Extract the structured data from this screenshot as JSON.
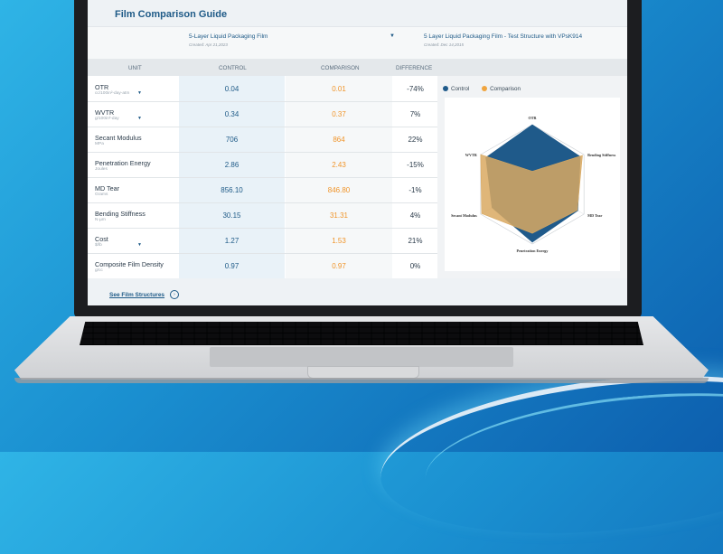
{
  "app": {
    "title": "Film Comparison Guide"
  },
  "selectors": {
    "control": {
      "name": "5-Layer Liquid Packaging Film",
      "date": "Created: Apr 21,2023"
    },
    "comparison": {
      "name": "5 Layer Liquid Packaging Film - Test Structure with VPsK914",
      "date": "Created: Dec 14,2015"
    }
  },
  "table": {
    "headers": {
      "unit": "UNIT",
      "control": "CONTROL",
      "comparison": "COMPARISON",
      "difference": "DIFFERENCE"
    },
    "rows": [
      {
        "name": "OTR",
        "unit": "cc/100in²-day-atm",
        "control": "0.04",
        "comparison": "0.01",
        "difference": "-74%",
        "dropdown": true
      },
      {
        "name": "WVTR",
        "unit": "g/100in²-day",
        "control": "0.34",
        "comparison": "0.37",
        "difference": "7%",
        "dropdown": true
      },
      {
        "name": "Secant Modulus",
        "unit": "MPa",
        "control": "706",
        "comparison": "864",
        "difference": "22%",
        "dropdown": false
      },
      {
        "name": "Penetration Energy",
        "unit": "Joules",
        "control": "2.86",
        "comparison": "2.43",
        "difference": "-15%",
        "dropdown": false
      },
      {
        "name": "MD Tear",
        "unit": "Grams",
        "control": "856.10",
        "comparison": "846.80",
        "difference": "-1%",
        "dropdown": false
      },
      {
        "name": "Bending Stiffness",
        "unit": "N·µm",
        "control": "30.15",
        "comparison": "31.31",
        "difference": "4%",
        "dropdown": false
      },
      {
        "name": "Cost",
        "unit": "$/lb",
        "control": "1.27",
        "comparison": "1.53",
        "difference": "21%",
        "dropdown": true
      },
      {
        "name": "Composite Film Density",
        "unit": "g/cc",
        "control": "0.97",
        "comparison": "0.97",
        "difference": "0%",
        "dropdown": false
      }
    ]
  },
  "chart_data": {
    "type": "radar",
    "axes": [
      "OTR",
      "Bending Stiffness",
      "MD Tear",
      "Penetration Energy",
      "Secant Modulus",
      "WVTR"
    ],
    "series": [
      {
        "name": "Control",
        "color": "#1f5a8a",
        "values": [
          1.0,
          0.93,
          0.88,
          0.97,
          0.78,
          0.9
        ]
      },
      {
        "name": "Comparison",
        "color": "#d9a961",
        "values": [
          0.22,
          0.97,
          0.87,
          0.82,
          0.98,
          1.0
        ]
      }
    ],
    "title": "",
    "ylim": [
      0,
      1
    ],
    "grid": true,
    "legend": "top-left"
  },
  "footer": {
    "link": "See Film Structures",
    "icon": "circle-arrow-icon"
  },
  "colors": {
    "accent": "#1e5a87",
    "comparison": "#f0952b",
    "background": "#1a8fd0"
  }
}
